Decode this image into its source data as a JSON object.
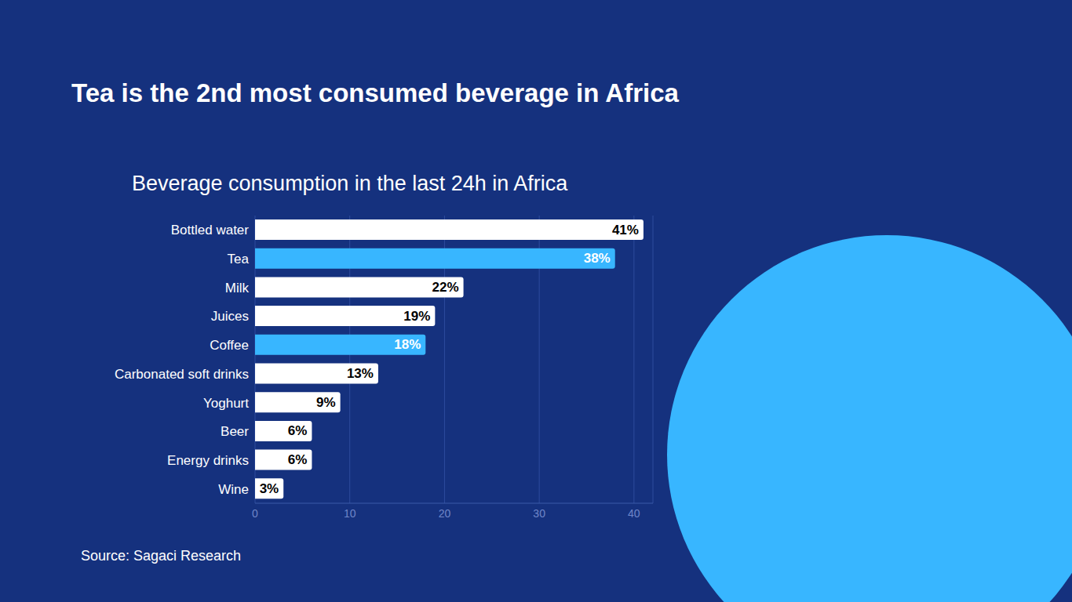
{
  "chart_data": {
    "type": "bar",
    "title": "Tea is the 2nd most consumed beverage in Africa",
    "subtitle": "Beverage consumption in the last 24h in Africa",
    "source": "Source: Sagaci Research",
    "orientation": "horizontal",
    "categories": [
      "Bottled water",
      "Tea",
      "Milk",
      "Juices",
      "Coffee",
      "Carbonated soft drinks",
      "Yoghurt",
      "Beer",
      "Energy drinks",
      "Wine"
    ],
    "values": [
      41,
      38,
      22,
      19,
      18,
      13,
      9,
      6,
      6,
      3
    ],
    "value_labels": [
      "41%",
      "38%",
      "22%",
      "19%",
      "18%",
      "13%",
      "9%",
      "6%",
      "6%",
      "3%"
    ],
    "colors": [
      "#ffffff",
      "#38b6ff",
      "#ffffff",
      "#ffffff",
      "#38b6ff",
      "#ffffff",
      "#ffffff",
      "#ffffff",
      "#ffffff",
      "#ffffff"
    ],
    "xlim": [
      0,
      42
    ],
    "xticks": [
      0,
      10,
      20,
      30,
      40
    ],
    "grid": true,
    "data_labels": true
  }
}
